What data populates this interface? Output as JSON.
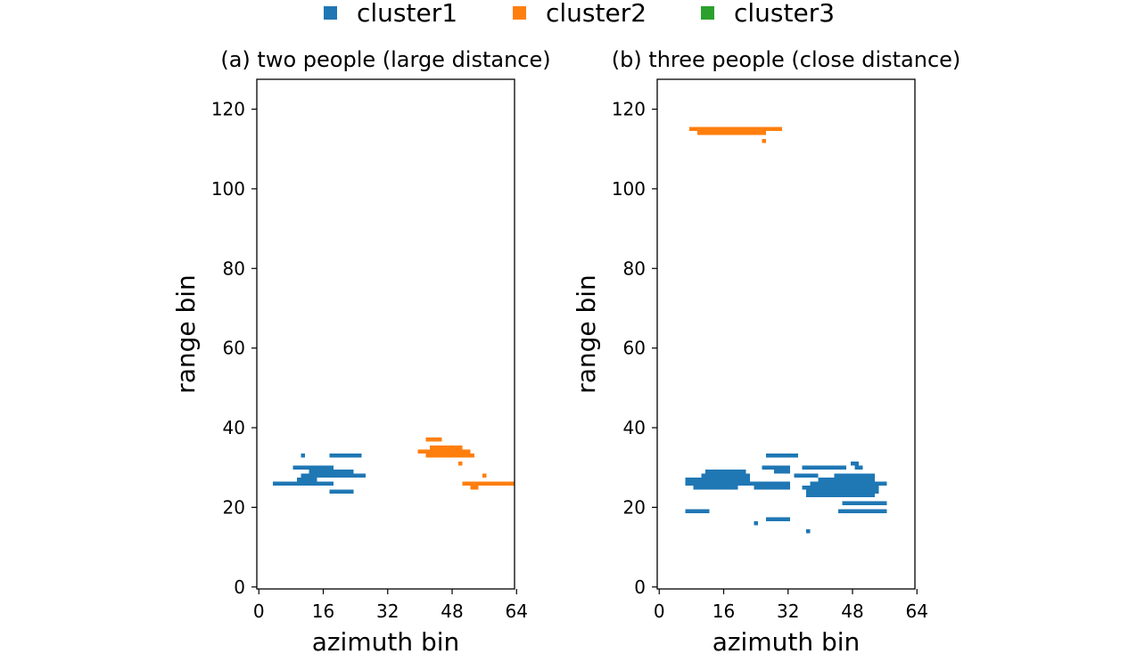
{
  "figure": {
    "legend": {
      "position": "top-center",
      "entries": [
        {
          "label": "cluster1",
          "color": "#1f77b4"
        },
        {
          "label": "cluster2",
          "color": "#ff7f0e"
        },
        {
          "label": "cluster3",
          "color": "#2ca02c"
        }
      ]
    }
  },
  "chart_data": [
    {
      "type": "heatmap",
      "title": "(a) two people (large distance)",
      "xlabel": "azimuth bin",
      "ylabel": "range bin",
      "xlim": [
        -0.5,
        63.5
      ],
      "ylim": [
        -0.5,
        127.5
      ],
      "xticks": [
        0,
        16,
        32,
        48,
        64
      ],
      "yticks": [
        0,
        20,
        40,
        60,
        80,
        100,
        120
      ],
      "grid": false,
      "series": [
        {
          "name": "cluster1",
          "color": "#1f77b4",
          "segments": [
            {
              "row": 33,
              "x0": 11,
              "x1": 11
            },
            {
              "row": 33,
              "x0": 18,
              "x1": 25
            },
            {
              "row": 30,
              "x0": 9,
              "x1": 18
            },
            {
              "row": 29,
              "x0": 13,
              "x1": 18
            },
            {
              "row": 29,
              "x0": 18,
              "x1": 23
            },
            {
              "row": 28,
              "x0": 11,
              "x1": 26
            },
            {
              "row": 27,
              "x0": 10,
              "x1": 14
            },
            {
              "row": 26,
              "x0": 4,
              "x1": 18
            },
            {
              "row": 24,
              "x0": 18,
              "x1": 23
            }
          ]
        },
        {
          "name": "cluster2",
          "color": "#ff7f0e",
          "segments": [
            {
              "row": 37,
              "x0": 42,
              "x1": 45
            },
            {
              "row": 35,
              "x0": 43,
              "x1": 50
            },
            {
              "row": 34,
              "x0": 40,
              "x1": 52
            },
            {
              "row": 33,
              "x0": 42,
              "x1": 53
            },
            {
              "row": 31,
              "x0": 50,
              "x1": 50
            },
            {
              "row": 28,
              "x0": 56,
              "x1": 56
            },
            {
              "row": 26,
              "x0": 51,
              "x1": 63
            },
            {
              "row": 25,
              "x0": 53,
              "x1": 54
            }
          ]
        },
        {
          "name": "cluster3",
          "color": "#2ca02c",
          "segments": []
        }
      ]
    },
    {
      "type": "heatmap",
      "title": "(b) three people (close distance)",
      "xlabel": "azimuth bin",
      "ylabel": "range bin",
      "xlim": [
        -0.5,
        63.5
      ],
      "ylim": [
        -0.5,
        127.5
      ],
      "xticks": [
        0,
        16,
        32,
        48,
        64
      ],
      "yticks": [
        0,
        20,
        40,
        60,
        80,
        100,
        120
      ],
      "grid": false,
      "series": [
        {
          "name": "cluster1",
          "color": "#1f77b4",
          "segments": [
            {
              "row": 33,
              "x0": 27,
              "x1": 34
            },
            {
              "row": 31,
              "x0": 48,
              "x1": 49
            },
            {
              "row": 30,
              "x0": 26,
              "x1": 32
            },
            {
              "row": 30,
              "x0": 36,
              "x1": 46
            },
            {
              "row": 30,
              "x0": 49,
              "x1": 50
            },
            {
              "row": 29,
              "x0": 12,
              "x1": 21
            },
            {
              "row": 29,
              "x0": 29,
              "x1": 32
            },
            {
              "row": 28,
              "x0": 11,
              "x1": 22
            },
            {
              "row": 28,
              "x0": 34,
              "x1": 39
            },
            {
              "row": 28,
              "x0": 44,
              "x1": 53
            },
            {
              "row": 27,
              "x0": 7,
              "x1": 22
            },
            {
              "row": 27,
              "x0": 40,
              "x1": 53
            },
            {
              "row": 26,
              "x0": 7,
              "x1": 32
            },
            {
              "row": 26,
              "x0": 38,
              "x1": 56
            },
            {
              "row": 25,
              "x0": 9,
              "x1": 19
            },
            {
              "row": 25,
              "x0": 24,
              "x1": 32
            },
            {
              "row": 25,
              "x0": 36,
              "x1": 54
            },
            {
              "row": 24,
              "x0": 37,
              "x1": 54
            },
            {
              "row": 23,
              "x0": 37,
              "x1": 53
            },
            {
              "row": 21,
              "x0": 46,
              "x1": 56
            },
            {
              "row": 19,
              "x0": 7,
              "x1": 12
            },
            {
              "row": 19,
              "x0": 45,
              "x1": 56
            },
            {
              "row": 17,
              "x0": 27,
              "x1": 32
            },
            {
              "row": 16,
              "x0": 24,
              "x1": 24
            },
            {
              "row": 14,
              "x0": 37,
              "x1": 37
            }
          ]
        },
        {
          "name": "cluster2",
          "color": "#ff7f0e",
          "segments": [
            {
              "row": 115,
              "x0": 8,
              "x1": 30
            },
            {
              "row": 114,
              "x0": 10,
              "x1": 26
            },
            {
              "row": 112,
              "x0": 26,
              "x1": 26
            }
          ]
        },
        {
          "name": "cluster3",
          "color": "#2ca02c",
          "segments": []
        }
      ]
    }
  ]
}
